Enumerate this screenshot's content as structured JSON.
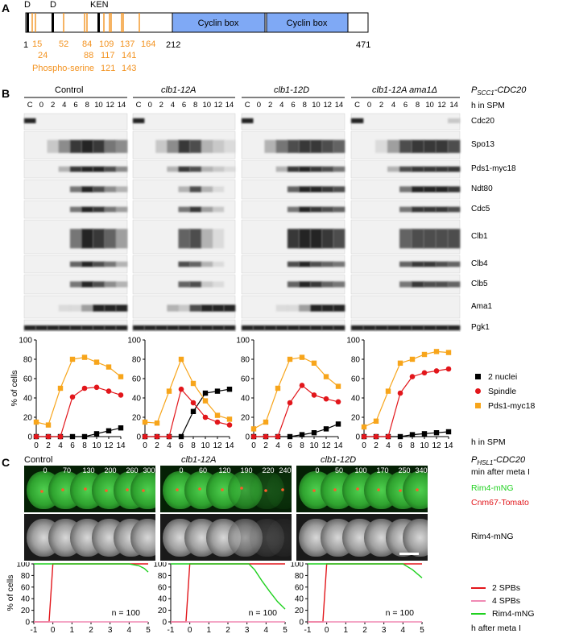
{
  "panelA": {
    "label": "A",
    "motifs": [
      "D",
      "D",
      "KEN"
    ],
    "cyclin_box": [
      "Cyclin box",
      "Cyclin box"
    ],
    "positions": [
      "1",
      "212",
      "471"
    ],
    "sites_row1": [
      "15",
      "52",
      "84",
      "109",
      "137",
      "164"
    ],
    "sites_row2": [
      "24",
      "88",
      "117",
      "141"
    ],
    "sites_row3": [
      "121",
      "143"
    ],
    "phospho_label": "Phospho-serine",
    "colors": {
      "box": "#7fa9f5",
      "site": "#f39321"
    }
  },
  "panelB": {
    "label": "B",
    "groups": [
      "Control",
      "clb1-12A",
      "clb1-12D",
      "clb1-12A ama1Δ"
    ],
    "promoter": "P",
    "promoter_sub": "SCC1",
    "promoter_gene": "-CDC20",
    "lanes": [
      "C",
      "0",
      "2",
      "4",
      "6",
      "8",
      "10",
      "12",
      "14"
    ],
    "time_label": "h in SPM",
    "proteins": [
      "Cdc20",
      "Spo13",
      "Pds1-myc18",
      "Ndt80",
      "Cdc5",
      "Clb1",
      "Clb4",
      "Clb5",
      "Ama1",
      "Pgk1"
    ]
  },
  "chart_data": [
    {
      "type": "line",
      "group": "Control",
      "x": [
        0,
        2,
        4,
        6,
        8,
        10,
        12,
        14
      ],
      "xticks": [
        "0",
        "2",
        "4",
        "6",
        "8",
        "10",
        "12",
        "14"
      ],
      "ylim": [
        0,
        100
      ],
      "yticks": [
        "0",
        "20",
        "40",
        "60",
        "80",
        "100"
      ],
      "ylabel": "% of cells",
      "series": [
        {
          "name": "2 nuclei",
          "values": [
            0,
            0,
            0,
            0,
            0,
            3,
            6,
            9
          ],
          "color": "#000000",
          "marker": "square"
        },
        {
          "name": "Spindle",
          "values": [
            0,
            0,
            0,
            41,
            50,
            51,
            47,
            43
          ],
          "color": "#e2161b",
          "marker": "circle"
        },
        {
          "name": "Pds1-myc18",
          "values": [
            15,
            12,
            50,
            80,
            82,
            77,
            72,
            62
          ],
          "color": "#f7a51b",
          "marker": "square"
        }
      ]
    },
    {
      "type": "line",
      "group": "clb1-12A",
      "x": [
        0,
        2,
        4,
        6,
        8,
        10,
        12,
        14
      ],
      "xticks": [
        "0",
        "2",
        "4",
        "6",
        "8",
        "10",
        "12",
        "14"
      ],
      "ylim": [
        0,
        100
      ],
      "yticks": [
        "0",
        "20",
        "40",
        "60",
        "80",
        "100"
      ],
      "series": [
        {
          "name": "2 nuclei",
          "values": [
            0,
            0,
            0,
            0,
            26,
            45,
            47,
            49
          ],
          "color": "#000000",
          "marker": "square"
        },
        {
          "name": "Spindle",
          "values": [
            0,
            0,
            0,
            49,
            35,
            20,
            15,
            12
          ],
          "color": "#e2161b",
          "marker": "circle"
        },
        {
          "name": "Pds1-myc18",
          "values": [
            15,
            14,
            47,
            80,
            55,
            37,
            22,
            18
          ],
          "color": "#f7a51b",
          "marker": "square"
        }
      ]
    },
    {
      "type": "line",
      "group": "clb1-12D",
      "x": [
        0,
        2,
        4,
        6,
        8,
        10,
        12,
        14
      ],
      "xticks": [
        "0",
        "2",
        "4",
        "6",
        "8",
        "10",
        "12",
        "14"
      ],
      "ylim": [
        0,
        100
      ],
      "yticks": [
        "0",
        "20",
        "40",
        "60",
        "80",
        "100"
      ],
      "series": [
        {
          "name": "2 nuclei",
          "values": [
            0,
            0,
            0,
            0,
            2,
            4,
            8,
            13
          ],
          "color": "#000000",
          "marker": "square"
        },
        {
          "name": "Spindle",
          "values": [
            0,
            0,
            0,
            35,
            53,
            43,
            39,
            36
          ],
          "color": "#e2161b",
          "marker": "circle"
        },
        {
          "name": "Pds1-myc18",
          "values": [
            8,
            15,
            50,
            80,
            82,
            76,
            62,
            52
          ],
          "color": "#f7a51b",
          "marker": "square"
        }
      ]
    },
    {
      "type": "line",
      "group": "clb1-12A ama1Δ",
      "x": [
        0,
        2,
        4,
        6,
        8,
        10,
        12,
        14
      ],
      "xticks": [
        "0",
        "2",
        "4",
        "6",
        "8",
        "10",
        "12",
        "14"
      ],
      "ylim": [
        0,
        100
      ],
      "yticks": [
        "0",
        "20",
        "40",
        "60",
        "80",
        "100"
      ],
      "series": [
        {
          "name": "2 nuclei",
          "values": [
            0,
            0,
            0,
            0,
            2,
            3,
            4,
            5
          ],
          "color": "#000000",
          "marker": "square"
        },
        {
          "name": "Spindle",
          "values": [
            0,
            0,
            0,
            45,
            62,
            66,
            68,
            70
          ],
          "color": "#e2161b",
          "marker": "circle"
        },
        {
          "name": "Pds1-myc18",
          "values": [
            10,
            16,
            47,
            76,
            80,
            85,
            88,
            87
          ],
          "color": "#f7a51b",
          "marker": "square"
        }
      ]
    },
    {
      "type": "line",
      "group": "Control",
      "xlim": [
        -1,
        5
      ],
      "xticks": [
        "-1",
        "0",
        "1",
        "2",
        "3",
        "4",
        "5"
      ],
      "ylim": [
        0,
        100
      ],
      "yticks": [
        "0",
        "20",
        "40",
        "60",
        "80",
        "100"
      ],
      "ylabel": "% of cells",
      "annotation": "n = 100",
      "series": [
        {
          "name": "2 SPBs",
          "color": "#e2161b",
          "x": [
            -1,
            -0.2,
            0,
            5
          ],
          "values": [
            0,
            0,
            100,
            100
          ]
        },
        {
          "name": "4 SPBs",
          "color": "#f08ab4",
          "x": [
            -1,
            5
          ],
          "values": [
            0,
            0
          ]
        },
        {
          "name": "Rim4-mNG",
          "color": "#1fd11f",
          "x": [
            -1,
            4.0,
            4.5,
            4.8,
            5
          ],
          "values": [
            100,
            100,
            97,
            92,
            86
          ]
        }
      ]
    },
    {
      "type": "line",
      "group": "clb1-12A",
      "xlim": [
        -1,
        5
      ],
      "xticks": [
        "-1",
        "0",
        "1",
        "2",
        "3",
        "4",
        "5"
      ],
      "ylim": [
        0,
        100
      ],
      "yticks": [
        "0",
        "20",
        "40",
        "60",
        "80",
        "100"
      ],
      "annotation": "n = 100",
      "series": [
        {
          "name": "2 SPBs",
          "color": "#e2161b",
          "x": [
            -1,
            -0.2,
            0,
            5
          ],
          "values": [
            0,
            0,
            100,
            100
          ]
        },
        {
          "name": "4 SPBs",
          "color": "#f08ab4",
          "x": [
            -1,
            5
          ],
          "values": [
            0,
            0
          ]
        },
        {
          "name": "Rim4-mNG",
          "color": "#1fd11f",
          "x": [
            -1,
            3.1,
            3.4,
            3.8,
            4.2,
            4.6,
            5
          ],
          "values": [
            100,
            100,
            90,
            70,
            52,
            35,
            22
          ]
        }
      ]
    },
    {
      "type": "line",
      "group": "clb1-12D",
      "xlim": [
        -1,
        5
      ],
      "xticks": [
        "-1",
        "0",
        "1",
        "2",
        "3",
        "4",
        "5"
      ],
      "ylim": [
        0,
        100
      ],
      "yticks": [
        "0",
        "20",
        "40",
        "60",
        "80",
        "100"
      ],
      "annotation": "n = 100",
      "series": [
        {
          "name": "2 SPBs",
          "color": "#e2161b",
          "x": [
            -1,
            -0.2,
            0,
            5
          ],
          "values": [
            0,
            0,
            100,
            100
          ]
        },
        {
          "name": "4 SPBs",
          "color": "#f08ab4",
          "x": [
            -1,
            5
          ],
          "values": [
            0,
            0
          ]
        },
        {
          "name": "Rim4-mNG",
          "color": "#1fd11f",
          "x": [
            -1,
            4.0,
            4.5,
            5
          ],
          "values": [
            100,
            100,
            90,
            76
          ]
        }
      ]
    }
  ],
  "legendB": {
    "items": [
      "2 nuclei",
      "Spindle",
      "Pds1-myc18"
    ],
    "time_label": "h in SPM"
  },
  "panelC": {
    "label": "C",
    "groups": [
      "Control",
      "clb1-12A",
      "clb1-12D"
    ],
    "promoter": "P",
    "promoter_sub": "HSL1",
    "promoter_gene": "-CDC20",
    "times_control": [
      "0",
      "70",
      "130",
      "200",
      "260",
      "300"
    ],
    "times_12A": [
      "0",
      "60",
      "120",
      "190",
      "220",
      "240"
    ],
    "times_12D": [
      "0",
      "50",
      "100",
      "170",
      "250",
      "340"
    ],
    "time_label": "min after meta I",
    "channel_green": "Rim4-mNG",
    "channel_red": "Cnm67-Tomato",
    "channel_gray": "Rim4-mNG",
    "legend": [
      "2 SPBs",
      "4 SPBs",
      "Rim4-mNG"
    ],
    "xaxis_label": "h after meta I"
  }
}
